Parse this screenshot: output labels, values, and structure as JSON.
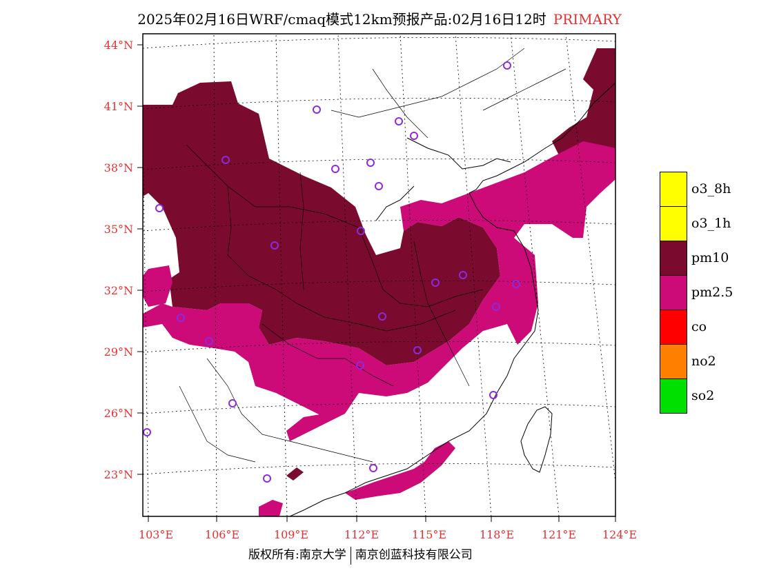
{
  "title": {
    "main": "2025年02月16日WRF/cmaq模式12km预报产品:02月16日12时",
    "tag": "PRIMARY"
  },
  "axes": {
    "lat_labels": [
      "44°N",
      "41°N",
      "38°N",
      "35°N",
      "32°N",
      "29°N",
      "26°N",
      "23°N"
    ],
    "lon_labels": [
      "103°E",
      "106°E",
      "109°E",
      "112°E",
      "115°E",
      "118°E",
      "121°E",
      "124°E"
    ]
  },
  "legend": [
    {
      "label": "o3_8h",
      "color": "#ffff00"
    },
    {
      "label": "o3_1h",
      "color": "#ffff00"
    },
    {
      "label": "pm10",
      "color": "#7a0a2e"
    },
    {
      "label": "pm2.5",
      "color": "#cc0a78"
    },
    {
      "label": "co",
      "color": "#ff0000"
    },
    {
      "label": "no2",
      "color": "#ff7f00"
    },
    {
      "label": "so2",
      "color": "#00e000"
    }
  ],
  "colors": {
    "pm10": "#7a0a2e",
    "pm25": "#cc0a78",
    "station": "#8a2be2",
    "label": "#e83030"
  },
  "footer": {
    "left": "版权所有:南京大学",
    "right": "南京创蓝科技有限公司"
  }
}
